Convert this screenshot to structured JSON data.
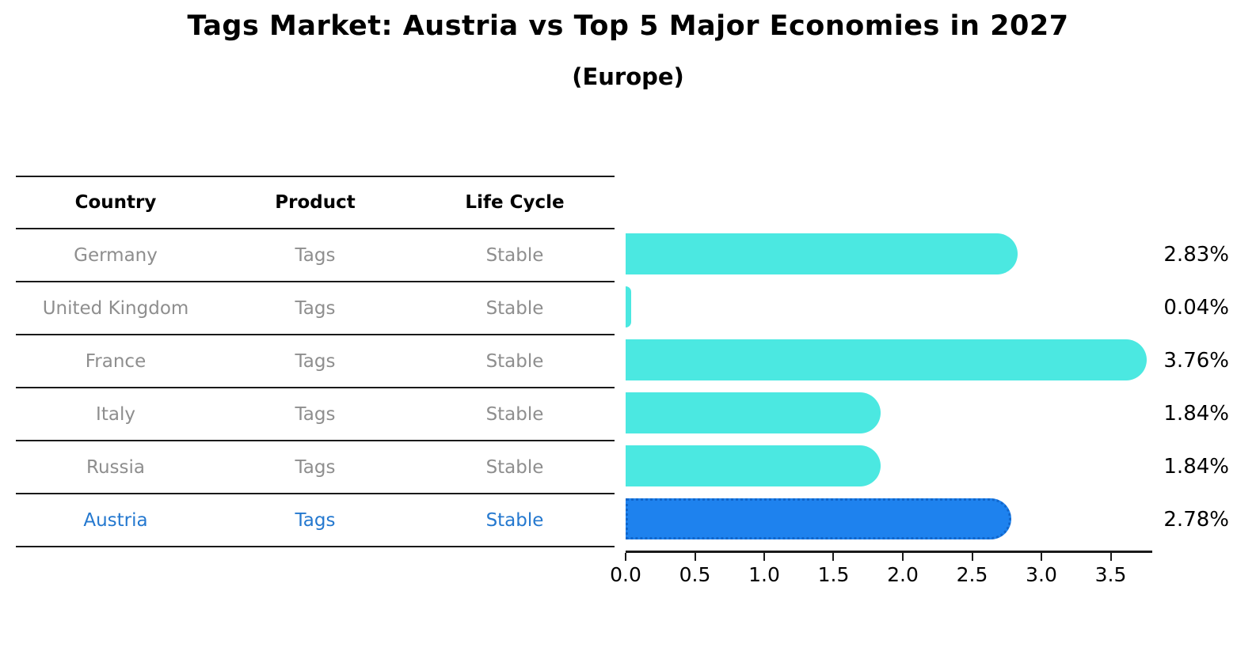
{
  "title": "Tags Market: Austria vs Top 5 Major Economies in 2027",
  "subtitle": "(Europe)",
  "table": {
    "headers": [
      "Country",
      "Product",
      "Life Cycle"
    ],
    "rows": [
      {
        "country": "Germany",
        "product": "Tags",
        "life_cycle": "Stable",
        "highlight": false
      },
      {
        "country": "United Kingdom",
        "product": "Tags",
        "life_cycle": "Stable",
        "highlight": false
      },
      {
        "country": "France",
        "product": "Tags",
        "life_cycle": "Stable",
        "highlight": false
      },
      {
        "country": "Italy",
        "product": "Tags",
        "life_cycle": "Stable",
        "highlight": false
      },
      {
        "country": "Russia",
        "product": "Tags",
        "life_cycle": "Stable",
        "highlight": false
      },
      {
        "country": "Austria",
        "product": "Tags",
        "life_cycle": "Stable",
        "highlight": true
      }
    ]
  },
  "chart_data": {
    "type": "bar",
    "orientation": "horizontal",
    "title": "Tags Market: Austria vs Top 5 Major Economies in 2027",
    "subtitle": "(Europe)",
    "categories": [
      "Germany",
      "United Kingdom",
      "France",
      "Italy",
      "Russia",
      "Austria"
    ],
    "values": [
      2.83,
      0.04,
      3.76,
      1.84,
      1.84,
      2.78
    ],
    "value_labels": [
      "2.83%",
      "0.04%",
      "3.76%",
      "1.84%",
      "1.84%",
      "2.78%"
    ],
    "x_ticks": [
      0.0,
      0.5,
      1.0,
      1.5,
      2.0,
      2.5,
      3.0,
      3.5
    ],
    "x_tick_labels": [
      "0.0",
      "0.5",
      "1.0",
      "1.5",
      "2.0",
      "2.5",
      "3.0",
      "3.5"
    ],
    "xlim": [
      0,
      3.8
    ],
    "grid": false,
    "legend": false,
    "highlight_index": 5
  },
  "colors": {
    "bar": "#4BE8E1",
    "highlight_bar": "#1E82EE",
    "highlight_border": "#1166CB",
    "highlight_text": "#2478CF",
    "table_text": "#8E8E8E",
    "line": "#1A1A1A",
    "text": "#000000"
  }
}
